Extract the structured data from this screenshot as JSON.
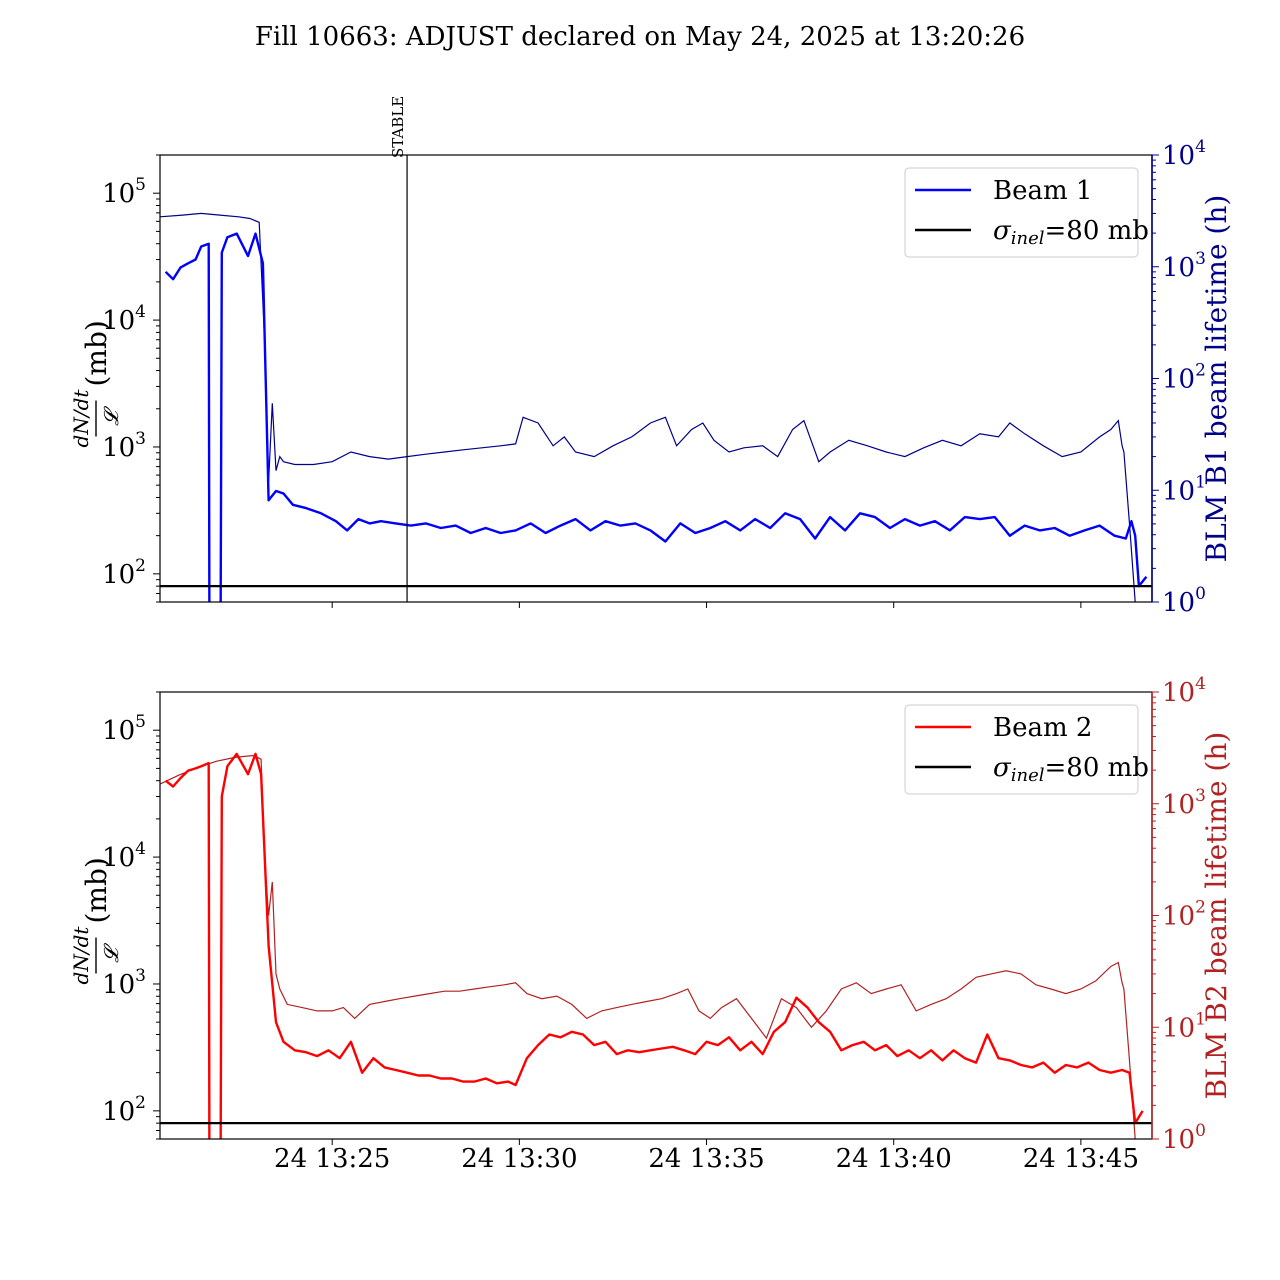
{
  "figure": {
    "title": "Fill 10663: ADJUST declared on May 24, 2025 at 13:20:26",
    "marker_label": "STABLE",
    "marker_time_min": 27.0,
    "x_tick_labels": [
      "24 13:25",
      "24 13:30",
      "24 13:35",
      "24 13:40",
      "24 13:45"
    ],
    "x_tick_values_min": [
      25,
      30,
      35,
      40,
      45
    ],
    "xlim_min": [
      20.4,
      46.9
    ],
    "left_ylabel_num": "dN/dt",
    "left_ylabel_den": "𝓛",
    "left_ylabel_unit": "(mb)",
    "left_tick_labels": [
      "10",
      "10",
      "10",
      "10"
    ],
    "left_tick_exponents": [
      "2",
      "3",
      "4",
      "5"
    ],
    "right_tick_labels": [
      "10",
      "10",
      "10",
      "10",
      "10"
    ],
    "right_tick_exponents": [
      "0",
      "1",
      "2",
      "3",
      "4"
    ]
  },
  "colors": {
    "beam1": "#0000ff",
    "beam1_lifetime": "#00008b",
    "beam2": "#ff0000",
    "beam2_lifetime": "#b22222",
    "sigma": "#000000"
  },
  "panels": [
    {
      "id": "beam1",
      "legend_beam": "Beam 1",
      "legend_sigma_symbol": "σ",
      "legend_sigma_sub": "inel",
      "legend_sigma_value": "=80 mb",
      "right_ylabel": "BLM B1 beam lifetime (h)"
    },
    {
      "id": "beam2",
      "legend_beam": "Beam 2",
      "legend_sigma_symbol": "σ",
      "legend_sigma_sub": "inel",
      "legend_sigma_value": "=80 mb",
      "right_ylabel": "BLM B2 beam lifetime (h)"
    }
  ],
  "chart_data": [
    {
      "type": "line",
      "title": "Fill 10663: ADJUST declared on May 24, 2025 at 13:20:26",
      "x_unit": "minutes after 13:00 on May 24",
      "ylabel": "dN/dt / 𝓛 (mb)",
      "y2label": "BLM B1 beam lifetime (h)",
      "yscale": "log",
      "ylim": [
        60,
        200000
      ],
      "y2scale": "log",
      "y2lim": [
        1,
        10000
      ],
      "grid": false,
      "legend_position": "top-right",
      "series": [
        {
          "name": "Beam 1",
          "axis": "left",
          "x": [
            20.55,
            20.75,
            20.95,
            21.15,
            21.35,
            21.5,
            21.7,
            21.72,
            22.02,
            22.05,
            22.2,
            22.45,
            22.75,
            22.95,
            23.15,
            23.3,
            23.5,
            23.7,
            23.95,
            24.3,
            24.7,
            25.1,
            25.4,
            25.7,
            26.0,
            26.3,
            26.7,
            27.1,
            27.5,
            27.9,
            28.3,
            28.7,
            29.1,
            29.5,
            29.9,
            30.3,
            30.7,
            31.1,
            31.5,
            31.9,
            32.3,
            32.7,
            33.1,
            33.5,
            33.9,
            34.3,
            34.7,
            35.1,
            35.5,
            35.9,
            36.3,
            36.7,
            37.1,
            37.5,
            37.9,
            38.3,
            38.7,
            39.1,
            39.5,
            39.9,
            40.3,
            40.7,
            41.1,
            41.5,
            41.9,
            42.3,
            42.7,
            43.1,
            43.5,
            43.9,
            44.3,
            44.7,
            45.1,
            45.5,
            45.9,
            46.2,
            46.35,
            46.45,
            46.55,
            46.75
          ],
          "y": [
            24000,
            21000,
            26000,
            28000,
            30000,
            38000,
            40000,
            40,
            40,
            34000,
            45000,
            48000,
            32000,
            48000,
            28000,
            380,
            450,
            430,
            350,
            330,
            300,
            260,
            220,
            270,
            250,
            260,
            250,
            240,
            250,
            230,
            240,
            210,
            230,
            210,
            220,
            250,
            210,
            240,
            270,
            220,
            260,
            240,
            250,
            220,
            180,
            250,
            210,
            230,
            260,
            220,
            270,
            230,
            300,
            270,
            190,
            280,
            220,
            300,
            280,
            230,
            270,
            240,
            260,
            220,
            280,
            270,
            280,
            200,
            240,
            220,
            230,
            200,
            220,
            240,
            200,
            190,
            260,
            200,
            80,
            95
          ]
        },
        {
          "name": "σ_inel = 80 mb",
          "axis": "left",
          "x": [
            20.4,
            46.9
          ],
          "y": [
            80,
            80
          ]
        },
        {
          "name": "BLM B1 beam lifetime",
          "axis": "right",
          "x": [
            20.4,
            21.0,
            21.5,
            22.0,
            22.5,
            22.8,
            23.05,
            23.2,
            23.3,
            23.4,
            23.5,
            23.6,
            23.7,
            24.0,
            24.5,
            25.0,
            25.5,
            26.0,
            26.5,
            27.0,
            27.5,
            28.0,
            28.5,
            29.0,
            29.5,
            29.9,
            30.1,
            30.5,
            30.9,
            31.2,
            31.5,
            32.0,
            32.5,
            33.0,
            33.5,
            33.9,
            34.2,
            34.6,
            34.9,
            35.2,
            35.6,
            36.0,
            36.5,
            36.9,
            37.3,
            37.6,
            38.0,
            38.3,
            38.8,
            39.3,
            39.8,
            40.3,
            40.8,
            41.3,
            41.8,
            42.3,
            42.8,
            43.1,
            43.5,
            44.0,
            44.5,
            45.0,
            45.5,
            45.8,
            46.0,
            46.1,
            46.15,
            46.3,
            46.45
          ],
          "y": [
            2800,
            2900,
            3000,
            2900,
            2800,
            2700,
            2500,
            200,
            12,
            60,
            15,
            20,
            18,
            17,
            17,
            18,
            22,
            20,
            19,
            20,
            21,
            22,
            23,
            24,
            25,
            26,
            45,
            40,
            25,
            30,
            22,
            20,
            25,
            30,
            40,
            45,
            25,
            35,
            40,
            28,
            22,
            24,
            25,
            20,
            35,
            42,
            18,
            22,
            28,
            25,
            22,
            20,
            24,
            28,
            25,
            32,
            30,
            40,
            32,
            25,
            20,
            22,
            30,
            35,
            42,
            25,
            22,
            5,
            1
          ]
        }
      ]
    },
    {
      "type": "line",
      "x_unit": "minutes after 13:00 on May 24",
      "xlabel": "",
      "ylabel": "dN/dt / 𝓛 (mb)",
      "y2label": "BLM B2 beam lifetime (h)",
      "yscale": "log",
      "ylim": [
        60,
        200000
      ],
      "y2scale": "log",
      "y2lim": [
        1,
        10000
      ],
      "grid": false,
      "legend_position": "top-right",
      "series": [
        {
          "name": "Beam 2",
          "axis": "left",
          "x": [
            20.55,
            20.75,
            20.95,
            21.15,
            21.35,
            21.5,
            21.7,
            21.72,
            22.02,
            22.05,
            22.2,
            22.45,
            22.75,
            22.95,
            23.1,
            23.3,
            23.5,
            23.7,
            24.0,
            24.3,
            24.6,
            24.9,
            25.2,
            25.5,
            25.8,
            26.1,
            26.4,
            26.7,
            27.0,
            27.3,
            27.6,
            27.9,
            28.2,
            28.5,
            28.8,
            29.1,
            29.4,
            29.7,
            29.9,
            30.2,
            30.5,
            30.8,
            31.1,
            31.4,
            31.7,
            32.0,
            32.3,
            32.6,
            32.9,
            33.2,
            33.5,
            33.8,
            34.1,
            34.4,
            34.7,
            35.0,
            35.3,
            35.6,
            35.9,
            36.2,
            36.5,
            36.8,
            37.1,
            37.4,
            37.7,
            38.0,
            38.3,
            38.6,
            38.9,
            39.2,
            39.5,
            39.8,
            40.1,
            40.4,
            40.7,
            41.0,
            41.3,
            41.6,
            41.9,
            42.2,
            42.5,
            42.8,
            43.1,
            43.4,
            43.7,
            44.0,
            44.3,
            44.6,
            44.9,
            45.2,
            45.5,
            45.8,
            46.1,
            46.3,
            46.45,
            46.65
          ],
          "y": [
            40000,
            36000,
            42000,
            48000,
            50000,
            52000,
            55000,
            40,
            40,
            30000,
            52000,
            65000,
            45000,
            65000,
            45000,
            2000,
            500,
            350,
            300,
            290,
            270,
            300,
            260,
            350,
            200,
            260,
            220,
            210,
            200,
            190,
            190,
            180,
            180,
            170,
            170,
            180,
            165,
            170,
            160,
            260,
            330,
            400,
            380,
            420,
            400,
            330,
            350,
            280,
            300,
            290,
            300,
            310,
            320,
            300,
            280,
            350,
            330,
            380,
            300,
            350,
            280,
            420,
            500,
            780,
            650,
            500,
            420,
            300,
            330,
            350,
            300,
            330,
            270,
            300,
            260,
            300,
            250,
            300,
            260,
            240,
            400,
            260,
            250,
            230,
            220,
            240,
            200,
            230,
            220,
            240,
            210,
            200,
            210,
            200,
            80,
            100
          ]
        },
        {
          "name": "σ_inel = 80 mb",
          "axis": "left",
          "x": [
            20.4,
            46.9
          ],
          "y": [
            80,
            80
          ]
        },
        {
          "name": "BLM B2 beam lifetime",
          "axis": "right",
          "x": [
            20.4,
            20.9,
            21.4,
            21.9,
            22.4,
            22.9,
            23.1,
            23.2,
            23.3,
            23.4,
            23.5,
            23.6,
            23.8,
            24.2,
            24.6,
            25.0,
            25.3,
            25.6,
            26.0,
            26.4,
            26.8,
            27.2,
            27.6,
            28.0,
            28.4,
            28.8,
            29.2,
            29.6,
            29.9,
            30.2,
            30.6,
            31.0,
            31.4,
            31.8,
            32.2,
            32.6,
            33.0,
            33.4,
            33.8,
            34.2,
            34.5,
            34.8,
            35.1,
            35.4,
            35.8,
            36.2,
            36.6,
            37.0,
            37.4,
            37.8,
            38.2,
            38.6,
            39.0,
            39.4,
            39.8,
            40.2,
            40.6,
            41.0,
            41.4,
            41.8,
            42.2,
            42.6,
            43.0,
            43.4,
            43.8,
            44.2,
            44.6,
            45.0,
            45.4,
            45.8,
            46.0,
            46.1,
            46.15,
            46.3,
            46.45
          ],
          "y": [
            1500,
            1800,
            2100,
            2400,
            2600,
            2700,
            2500,
            300,
            100,
            200,
            30,
            22,
            16,
            15,
            14,
            14,
            15,
            12,
            16,
            17,
            18,
            19,
            20,
            21,
            21,
            22,
            23,
            24,
            25,
            20,
            18,
            19,
            16,
            12,
            14,
            15,
            16,
            17,
            18,
            20,
            22,
            14,
            12,
            15,
            18,
            12,
            8,
            18,
            15,
            10,
            14,
            22,
            25,
            20,
            22,
            24,
            14,
            16,
            18,
            22,
            28,
            30,
            32,
            30,
            24,
            22,
            20,
            22,
            26,
            35,
            38,
            25,
            22,
            5,
            1
          ]
        }
      ]
    }
  ]
}
